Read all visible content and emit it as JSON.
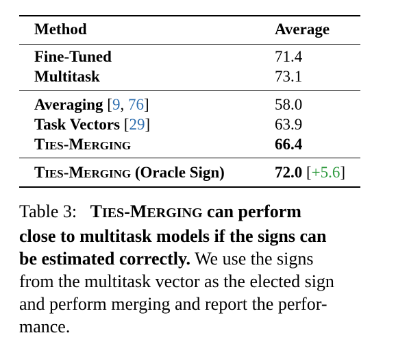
{
  "table": {
    "headers": {
      "method": "Method",
      "average": "Average"
    },
    "group1": [
      {
        "method": "Fine-Tuned",
        "average": "71.4"
      },
      {
        "method": "Multitask",
        "average": "73.1"
      }
    ],
    "group2": [
      {
        "method": "Averaging",
        "cite_open": "[",
        "cite_a": "9",
        "cite_sep": ", ",
        "cite_b": "76",
        "cite_close": "]",
        "average": "58.0"
      },
      {
        "method": "Task Vectors",
        "cite_open": "[",
        "cite_a": "29",
        "cite_close": "]",
        "average": "63.9"
      },
      {
        "method_sc_T": "T",
        "method_sc_IES": "IES",
        "method_sc_dash": "-",
        "method_sc_M": "M",
        "method_sc_ERGING": "ERGING",
        "average": "66.4"
      }
    ],
    "group3": [
      {
        "method_sc_T": "T",
        "method_sc_IES": "IES",
        "method_sc_dash": "-",
        "method_sc_M": "M",
        "method_sc_ERGING": "ERGING",
        "method_suffix": " (Oracle Sign)",
        "average": "72.0",
        "gain_open": " [",
        "gain": "+5.6",
        "gain_close": "]"
      }
    ]
  },
  "caption": {
    "label": "Table 3:",
    "title_T": "T",
    "title_IES": "IES",
    "title_dash": "-",
    "title_M": "M",
    "title_ERGING": "ERGING",
    "title_rest_line1": " can perform",
    "title_line2": "close to multitask models if the signs can",
    "title_line3_bold": "be estimated correctly.",
    "line3_rest": " We use the signs",
    "line4": "from the multitask vector as the elected sign",
    "line5": "and perform merging and report the perfor-",
    "line6": "mance."
  }
}
